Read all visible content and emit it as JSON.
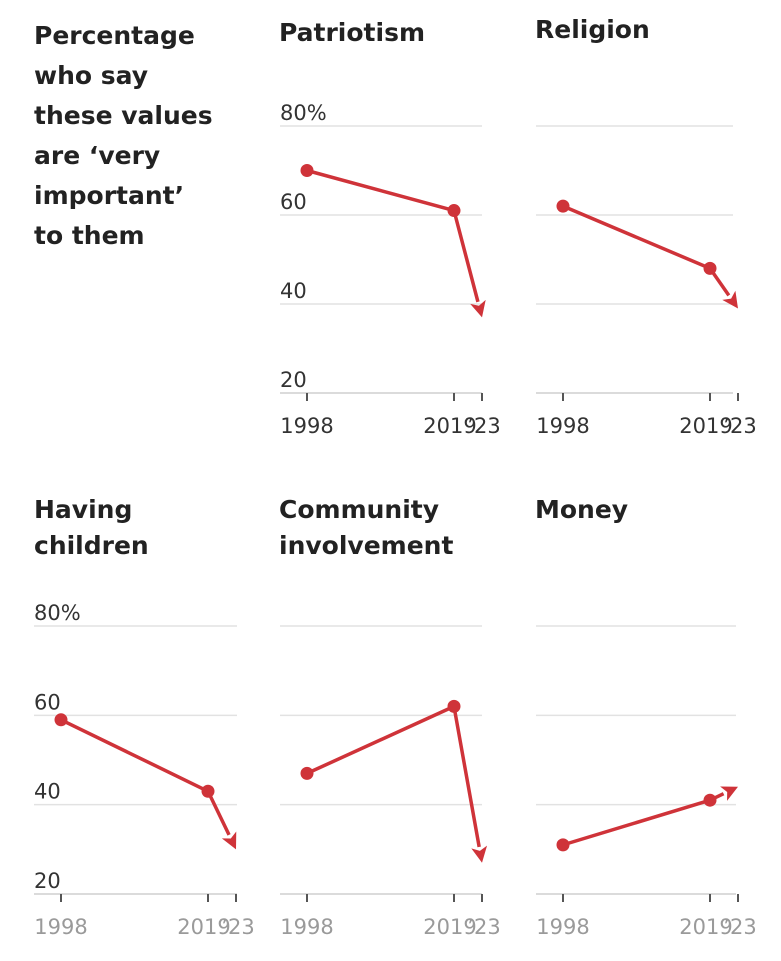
{
  "intro": {
    "lines": [
      "Percentage",
      "who say",
      "these values",
      "are ‘very",
      "important’",
      "to them"
    ]
  },
  "colors": {
    "line": "#cf3339",
    "grid": "#e2e2e2",
    "text": "#222222",
    "muted_tick": "#9a9a9a"
  },
  "chart_data": [
    {
      "type": "line",
      "title": "Patriotism",
      "x": [
        1998,
        2019,
        2023
      ],
      "x_tick_labels": [
        "1998",
        "2019",
        "’23"
      ],
      "y_tick_labels": [
        "80%",
        "60",
        "40",
        "20"
      ],
      "ylim": [
        20,
        80
      ],
      "values": [
        70,
        61,
        37
      ]
    },
    {
      "type": "line",
      "title": "Religion",
      "x": [
        1998,
        2019,
        2023
      ],
      "x_tick_labels": [
        "1998",
        "2019",
        "’23"
      ],
      "y_tick_labels": [],
      "ylim": [
        20,
        80
      ],
      "values": [
        62,
        48,
        39
      ]
    },
    {
      "type": "line",
      "title": "Having children",
      "x": [
        1998,
        2019,
        2023
      ],
      "x_tick_labels": [
        "1998",
        "2019",
        "’23"
      ],
      "y_tick_labels": [
        "80%",
        "60",
        "40",
        "20"
      ],
      "ylim": [
        20,
        80
      ],
      "values": [
        59,
        43,
        30
      ]
    },
    {
      "type": "line",
      "title": "Community involvement",
      "x": [
        1998,
        2019,
        2023
      ],
      "x_tick_labels": [
        "1998",
        "2019",
        "’23"
      ],
      "y_tick_labels": [],
      "ylim": [
        20,
        80
      ],
      "values": [
        47,
        62,
        27
      ]
    },
    {
      "type": "line",
      "title": "Money",
      "x": [
        1998,
        2019,
        2023
      ],
      "x_tick_labels": [
        "1998",
        "2019",
        "’23"
      ],
      "y_tick_labels": [],
      "ylim": [
        20,
        80
      ],
      "values": [
        31,
        41,
        44
      ]
    }
  ]
}
